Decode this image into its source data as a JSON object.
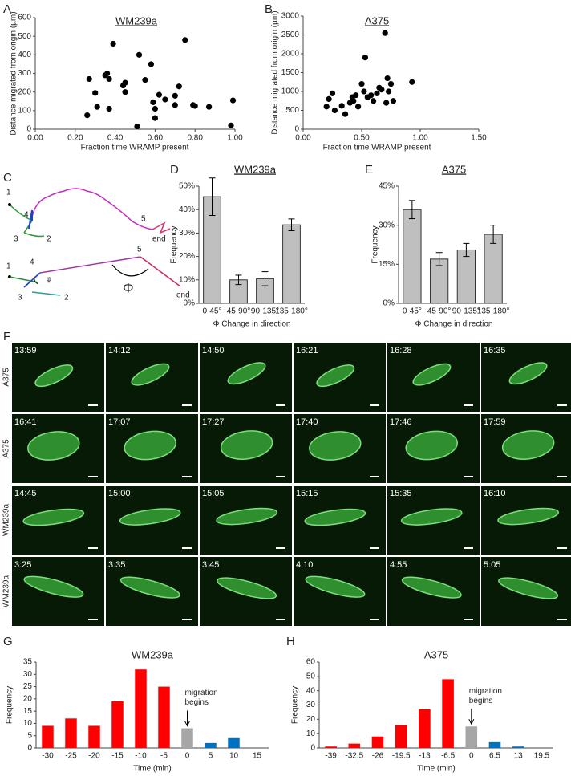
{
  "chart_data": [
    {
      "type": "scatter",
      "panel": "A",
      "title": "WM239a",
      "underline": true,
      "x_label": "Fraction time WRAMP present",
      "y_label": "Distance migrated from origin (µm)",
      "x": [
        0.26,
        0.27,
        0.31,
        0.3,
        0.35,
        0.36,
        0.37,
        0.37,
        0.39,
        0.44,
        0.45,
        0.45,
        0.52,
        0.55,
        0.58,
        0.51,
        0.59,
        0.6,
        0.6,
        0.62,
        0.65,
        0.7,
        0.7,
        0.75,
        0.72,
        0.79,
        0.8,
        0.87,
        0.98,
        0.99
      ],
      "values": [
        75,
        270,
        120,
        195,
        290,
        300,
        110,
        270,
        460,
        235,
        200,
        250,
        400,
        265,
        350,
        15,
        145,
        110,
        60,
        185,
        160,
        180,
        130,
        480,
        230,
        130,
        125,
        120,
        20,
        155
      ],
      "color": "#000000",
      "xlim": [
        0,
        1
      ],
      "xticks": [
        {
          "value": 0,
          "label": "0.00"
        },
        {
          "value": 0.2,
          "label": "0.20"
        },
        {
          "value": 0.4,
          "label": "0.40"
        },
        {
          "value": 0.6,
          "label": "0.60"
        },
        {
          "value": 0.8,
          "label": "0.80"
        },
        {
          "value": 1,
          "label": "1.00"
        }
      ],
      "ylim": [
        0,
        600
      ],
      "yticks": [
        0,
        100,
        200,
        300,
        400,
        500,
        600
      ]
    },
    {
      "type": "scatter",
      "panel": "B",
      "title": "A375",
      "underline": true,
      "x_label": "Fraction time WRAMP present",
      "y_label": "Distance migrated from origin (µm)",
      "x": [
        0.2,
        0.22,
        0.25,
        0.27,
        0.33,
        0.36,
        0.4,
        0.42,
        0.43,
        0.45,
        0.47,
        0.5,
        0.52,
        0.53,
        0.55,
        0.58,
        0.6,
        0.63,
        0.65,
        0.67,
        0.7,
        0.71,
        0.72,
        0.73,
        0.75,
        0.77,
        0.93
      ],
      "values": [
        600,
        800,
        950,
        500,
        620,
        400,
        700,
        850,
        750,
        900,
        600,
        1200,
        1000,
        1900,
        850,
        900,
        750,
        950,
        1100,
        1050,
        2550,
        700,
        1350,
        1000,
        1200,
        750,
        1250
      ],
      "color": "#000000",
      "xlim": [
        0,
        1.5
      ],
      "xticks": [
        {
          "value": 0,
          "label": "0.00"
        },
        {
          "value": 0.5,
          "label": "0.50"
        },
        {
          "value": 1,
          "label": "1.00"
        },
        {
          "value": 1.5,
          "label": "1.50"
        }
      ],
      "ylim": [
        0,
        3000
      ],
      "yticks": [
        0,
        500,
        1000,
        1500,
        2000,
        2500,
        3000
      ]
    },
    {
      "type": "errorbar",
      "panel": "D",
      "title": "WM239a",
      "underline": true,
      "x_label": "Φ Change in direction",
      "y_label": "Frequency",
      "categories": [
        "0-45°",
        "45-90°",
        "90-135°",
        "135-180°"
      ],
      "values": [
        45.5,
        10,
        10.5,
        33.5
      ],
      "errors": [
        8,
        2,
        3,
        2.5
      ],
      "color": "#bfbfbf",
      "ylim": [
        0,
        50
      ],
      "yticks": [
        {
          "value": 0,
          "label": "0%"
        },
        {
          "value": 10,
          "label": "10%"
        },
        {
          "value": 20,
          "label": "20%"
        },
        {
          "value": 30,
          "label": "30%"
        },
        {
          "value": 40,
          "label": "40%"
        },
        {
          "value": 50,
          "label": "50%"
        }
      ]
    },
    {
      "type": "errorbar",
      "panel": "E",
      "title": "A375",
      "underline": true,
      "x_label": "Φ Change in direction",
      "y_label": "Frequency",
      "categories": [
        "0-45°",
        "45-90°",
        "90-135°",
        "135-180°"
      ],
      "values": [
        36,
        17,
        20.5,
        26.5
      ],
      "errors": [
        3.5,
        2.5,
        2.5,
        3.5
      ],
      "color": "#bfbfbf",
      "ylim": [
        0,
        45
      ],
      "yticks": [
        {
          "value": 0,
          "label": "0%"
        },
        {
          "value": 15,
          "label": "15%"
        },
        {
          "value": 30,
          "label": "30%"
        },
        {
          "value": 45,
          "label": "45%"
        }
      ]
    },
    {
      "type": "bar",
      "panel": "G",
      "title": "WM239a",
      "underline": false,
      "x_label": "Time (min)",
      "y_label": "Frequency",
      "categories": [
        "-30",
        "-25",
        "-20",
        "-15",
        "-10",
        "-5",
        "0",
        "5",
        "10",
        "15"
      ],
      "values": [
        9,
        12,
        9,
        19,
        32,
        25,
        8,
        2,
        4,
        null
      ],
      "colors": [
        "#ff0000",
        "#ff0000",
        "#ff0000",
        "#ff0000",
        "#ff0000",
        "#ff0000",
        "#a6a6a6",
        "#0070c0",
        "#0070c0",
        "#0070c0"
      ],
      "annotation": {
        "lines": [
          "migration",
          "begins"
        ],
        "x": "0"
      },
      "ylim": [
        0,
        35
      ],
      "yticks": [
        0,
        5,
        10,
        15,
        20,
        25,
        30,
        35
      ]
    },
    {
      "type": "bar",
      "panel": "H",
      "title": "A375",
      "underline": false,
      "x_label": "Time (min)",
      "y_label": "Frequency",
      "categories": [
        "-39",
        "-32.5",
        "-26",
        "-19.5",
        "-13",
        "-6.5",
        "0",
        "6.5",
        "13",
        "19.5"
      ],
      "values": [
        1,
        3,
        8,
        16,
        27,
        48,
        15,
        4,
        1,
        null
      ],
      "colors": [
        "#ff0000",
        "#ff0000",
        "#ff0000",
        "#ff0000",
        "#ff0000",
        "#ff0000",
        "#a6a6a6",
        "#0070c0",
        "#0070c0",
        "#0070c0"
      ],
      "annotation": {
        "lines": [
          "migration",
          "begins"
        ],
        "x": "0"
      },
      "ylim": [
        0,
        60
      ],
      "yticks": [
        0,
        10,
        20,
        30,
        40,
        50,
        60
      ]
    }
  ],
  "panel_c": {
    "letter": "C",
    "labels": [
      "1",
      "4",
      "3",
      "2",
      "5",
      "end",
      "1",
      "4",
      "φ",
      "3",
      "2",
      "5",
      "Φ",
      "end"
    ]
  },
  "panel_f": {
    "letter": "F",
    "rows": [
      {
        "label": "A375",
        "times": [
          "13:59",
          "14:12",
          "14:50",
          "16:21",
          "16:28",
          "16:35"
        ]
      },
      {
        "label": "A375",
        "times": [
          "16:41",
          "17:07",
          "17:27",
          "17:40",
          "17:46",
          "17:59"
        ]
      },
      {
        "label": "WM239a",
        "times": [
          "14:45",
          "15:00",
          "15:05",
          "15:15",
          "15:35",
          "16:10"
        ]
      },
      {
        "label": "WM239a",
        "times": [
          "3:25",
          "3:35",
          "3:45",
          "4:10",
          "4:55",
          "5:05"
        ]
      }
    ]
  }
}
